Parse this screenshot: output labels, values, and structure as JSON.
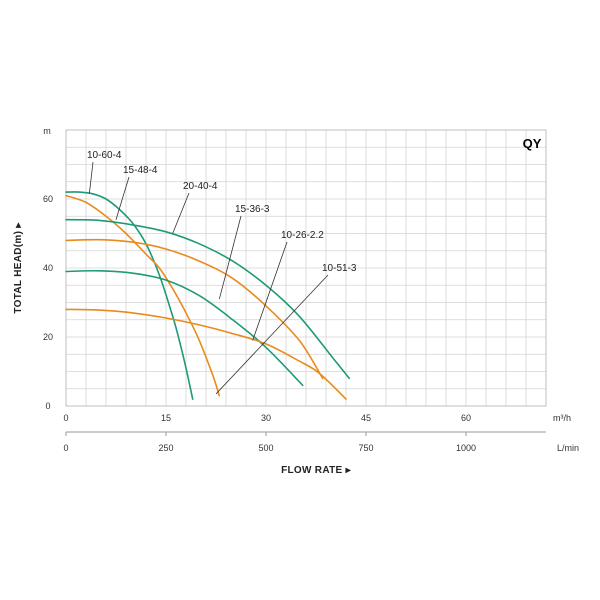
{
  "chart_data": {
    "type": "line",
    "brand": "QY",
    "ylabel": "TOTAL HEAD(m) ▸",
    "y_unit": "m",
    "xlabel": "FLOW RATE ▸",
    "x_unit": "m³/h",
    "x2_unit": "L/min",
    "xlim": [
      0,
      72
    ],
    "ylim": [
      0,
      80
    ],
    "x_ticks": [
      0,
      15,
      30,
      45,
      60
    ],
    "x_tick_labels": [
      "0",
      "15",
      "30",
      "45",
      "60"
    ],
    "x2_ticks": [
      0,
      15,
      30,
      60
    ],
    "x2_tick_labels": [
      "0",
      "250",
      "500",
      "1000"
    ],
    "x2_ticks_extra": [
      {
        "x": 45,
        "label": "750"
      }
    ],
    "y_ticks": [
      0,
      20,
      40,
      60
    ],
    "y_tick_labels": [
      "0",
      "20",
      "40",
      "60"
    ],
    "grid": true,
    "colors": {
      "green": "#1e9a78",
      "orange": "#e98b1c",
      "grid": "#d4d4d4",
      "frame": "#bfbfbf",
      "brand": "#1ea06e"
    },
    "series": [
      {
        "name": "10-60-4",
        "color": "#1e9a78",
        "x": [
          0,
          2,
          4,
          6,
          8,
          10,
          12,
          14,
          16,
          17,
          18,
          19
        ],
        "y": [
          62,
          62,
          61.5,
          60,
          57,
          53,
          47,
          38,
          26,
          19,
          11,
          2
        ]
      },
      {
        "name": "15-48-4",
        "color": "#e98b1c",
        "x": [
          0,
          3,
          6,
          9,
          12,
          14,
          16,
          18,
          20,
          22,
          23
        ],
        "y": [
          61,
          59,
          55,
          50,
          44,
          40,
          34,
          27,
          19,
          9,
          3
        ]
      },
      {
        "name": "20-40-4",
        "color": "#1e9a78",
        "x": [
          0,
          5,
          10,
          15,
          20,
          25,
          30,
          35,
          40,
          42.5
        ],
        "y": [
          54,
          53.8,
          52.5,
          50.5,
          47,
          42,
          35,
          26,
          14,
          8
        ]
      },
      {
        "name": "15-36-3",
        "color": "#e98b1c",
        "x": [
          0,
          5,
          10,
          15,
          20,
          25,
          30,
          35,
          38.5
        ],
        "y": [
          48,
          48.2,
          47.5,
          45.5,
          42,
          37,
          29,
          19,
          8
        ]
      },
      {
        "name": "10-26-2.2",
        "color": "#1e9a78",
        "x": [
          0,
          5,
          10,
          15,
          20,
          25,
          30,
          35.5
        ],
        "y": [
          39,
          39.2,
          38.5,
          36.5,
          32,
          25,
          17,
          6
        ]
      },
      {
        "name": "10-51-3",
        "color": "#e98b1c",
        "x": [
          0,
          5,
          10,
          15,
          20,
          25,
          30,
          35,
          38,
          42
        ],
        "y": [
          28,
          27.8,
          27,
          25.5,
          23.5,
          21,
          18,
          13,
          9.5,
          2
        ]
      }
    ],
    "annotations": [
      {
        "label": "10-60-4",
        "target_x": 3.5,
        "target_y": 61.5
      },
      {
        "label": "15-48-4",
        "target_x": 7.5,
        "target_y": 54
      },
      {
        "label": "20-40-4",
        "target_x": 16,
        "target_y": 50
      },
      {
        "label": "15-36-3",
        "target_x": 23,
        "target_y": 31
      },
      {
        "label": "10-26-2.2",
        "target_x": 28,
        "target_y": 19
      },
      {
        "label": "10-51-3",
        "target_x": 22.5,
        "target_y": 3.5
      }
    ]
  }
}
